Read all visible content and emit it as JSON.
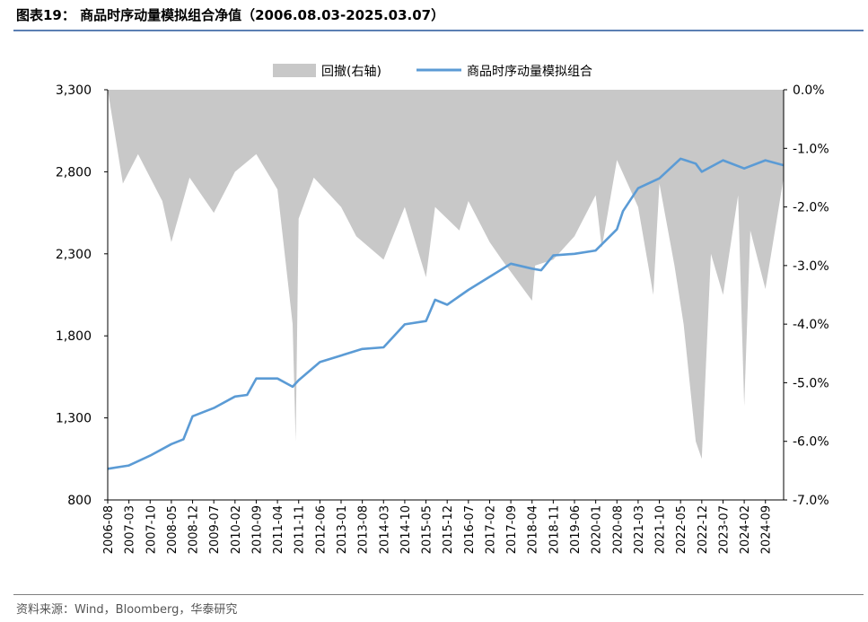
{
  "header": {
    "title": "图表19：  商品时序动量模拟组合净值（2006.08.03-2025.03.07）"
  },
  "footer": {
    "source": "资料来源：Wind，Bloomberg，华泰研究"
  },
  "colors": {
    "line": "#5b9bd5",
    "drawdown": "#c8c8c8",
    "rule": "#5b7fb3"
  },
  "chart_data": {
    "type": "line",
    "legend_position": "top-center",
    "grid": false,
    "legend": [
      {
        "name": "回撤(右轴)",
        "type": "area"
      },
      {
        "name": "商品时序动量模拟组合",
        "type": "line"
      }
    ],
    "x_labels": [
      "2006-08",
      "2007-03",
      "2007-10",
      "2008-05",
      "2008-12",
      "2009-07",
      "2010-02",
      "2010-09",
      "2011-04",
      "2011-11",
      "2012-06",
      "2013-01",
      "2013-08",
      "2014-03",
      "2014-10",
      "2015-05",
      "2015-12",
      "2016-07",
      "2017-02",
      "2017-09",
      "2018-04",
      "2018-11",
      "2019-06",
      "2020-01",
      "2020-08",
      "2021-03",
      "2021-10",
      "2022-05",
      "2022-12",
      "2023-07",
      "2024-02",
      "2024-09"
    ],
    "y_left": {
      "ticks": [
        "3,300",
        "2,800",
        "2,300",
        "1,800",
        "1,300",
        "800"
      ],
      "range": [
        800,
        3300
      ]
    },
    "y_right": {
      "ticks": [
        "0.0%",
        "-1.0%",
        "-2.0%",
        "-3.0%",
        "-4.0%",
        "-5.0%",
        "-6.0%",
        "-7.0%"
      ],
      "range": [
        -7.0,
        0.0
      ]
    },
    "series": [
      {
        "name": "商品时序动量模拟组合",
        "axis": "left",
        "x": [
          "2006-08",
          "2007-03",
          "2007-10",
          "2008-05",
          "2008-09",
          "2008-12",
          "2009-07",
          "2010-02",
          "2010-06",
          "2010-09",
          "2011-04",
          "2011-09",
          "2011-11",
          "2012-06",
          "2013-01",
          "2013-08",
          "2014-03",
          "2014-10",
          "2015-05",
          "2015-08",
          "2015-12",
          "2016-07",
          "2017-02",
          "2017-09",
          "2018-04",
          "2018-07",
          "2018-11",
          "2019-06",
          "2020-01",
          "2020-08",
          "2020-10",
          "2021-03",
          "2021-10",
          "2022-05",
          "2022-10",
          "2022-12",
          "2023-07",
          "2024-02",
          "2024-09",
          "2025-03"
        ],
        "values": [
          990,
          1010,
          1070,
          1140,
          1170,
          1310,
          1360,
          1430,
          1440,
          1540,
          1540,
          1490,
          1530,
          1640,
          1680,
          1720,
          1730,
          1870,
          1890,
          2020,
          1990,
          2080,
          2160,
          2240,
          2210,
          2200,
          2290,
          2300,
          2320,
          2450,
          2560,
          2700,
          2760,
          2880,
          2850,
          2800,
          2870,
          2820,
          2870,
          2840
        ]
      },
      {
        "name": "回撤(右轴)",
        "axis": "right",
        "unit": "%",
        "x": [
          "2006-08",
          "2007-01",
          "2007-06",
          "2008-02",
          "2008-05",
          "2008-11",
          "2009-07",
          "2010-02",
          "2010-09",
          "2011-04",
          "2011-09",
          "2011-10",
          "2011-11",
          "2012-04",
          "2013-01",
          "2013-06",
          "2014-03",
          "2014-10",
          "2015-05",
          "2015-08",
          "2016-04",
          "2016-07",
          "2017-02",
          "2017-06",
          "2018-04",
          "2018-05",
          "2018-11",
          "2019-06",
          "2020-01",
          "2020-03",
          "2020-08",
          "2021-03",
          "2021-08",
          "2021-10",
          "2022-03",
          "2022-06",
          "2022-10",
          "2022-12",
          "2023-03",
          "2023-07",
          "2023-12",
          "2024-02",
          "2024-04",
          "2024-09",
          "2025-03"
        ],
        "values": [
          0,
          -1.6,
          -1.1,
          -1.9,
          -2.6,
          -1.5,
          -2.1,
          -1.4,
          -1.1,
          -1.7,
          -4.0,
          -6.0,
          -2.2,
          -1.5,
          -2.0,
          -2.5,
          -2.9,
          -2.0,
          -3.2,
          -2.0,
          -2.4,
          -1.9,
          -2.6,
          -2.9,
          -3.6,
          -3.0,
          -2.9,
          -2.5,
          -1.8,
          -2.7,
          -1.2,
          -2.0,
          -3.5,
          -1.6,
          -3.0,
          -4.0,
          -6.0,
          -6.3,
          -2.8,
          -3.5,
          -1.8,
          -5.4,
          -2.4,
          -3.4,
          -1.5
        ]
      }
    ]
  }
}
